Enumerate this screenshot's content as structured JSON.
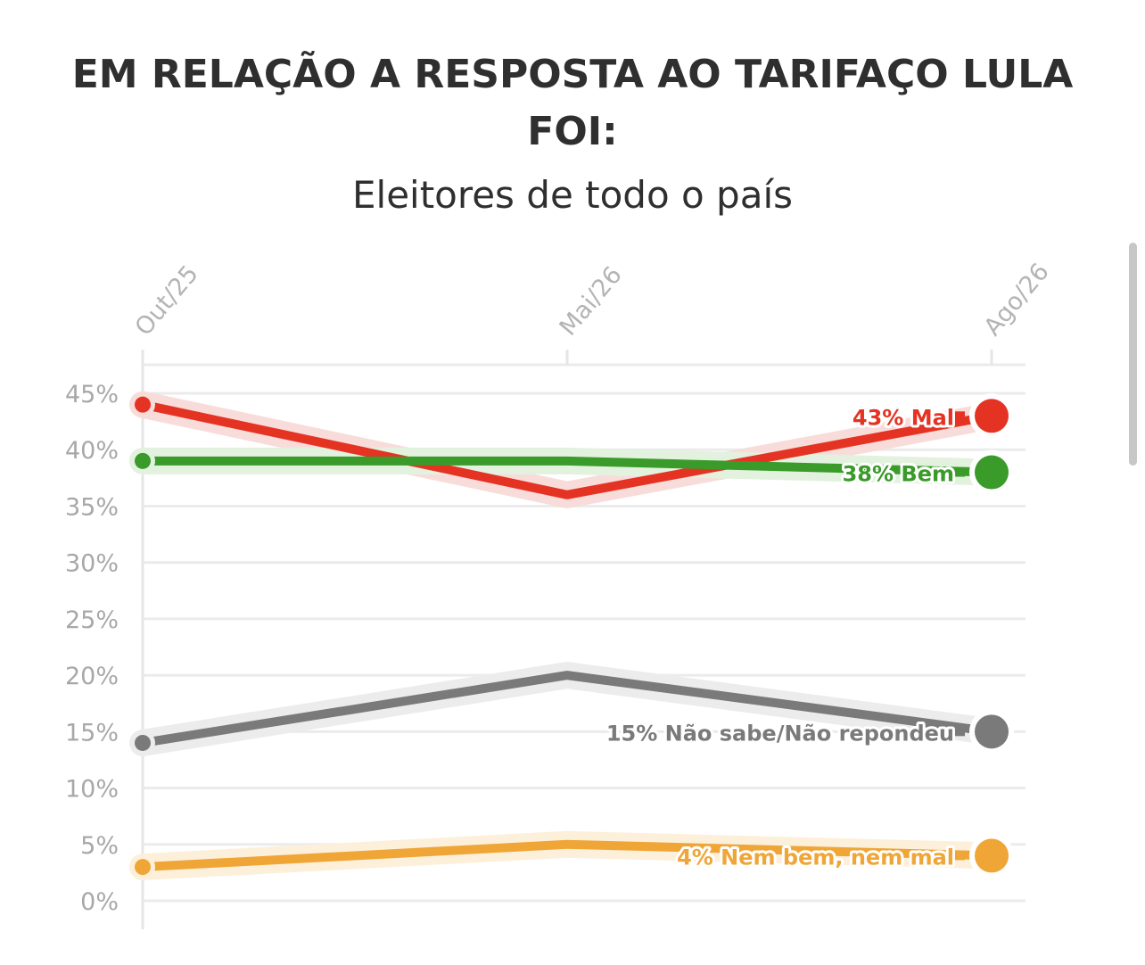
{
  "chart_data": {
    "type": "line",
    "title": "EM RELAÇÃO A RESPOSTA AO TARIFAÇO LULA FOI:",
    "subtitle": "Eleitores de todo o país",
    "x": [
      "Out/25",
      "Mai/26",
      "Ago/26"
    ],
    "y_ticks": [
      "0%",
      "5%",
      "10%",
      "15%",
      "20%",
      "25%",
      "30%",
      "35%",
      "40%",
      "45%"
    ],
    "ylim": [
      0,
      45
    ],
    "grid": true,
    "series": [
      {
        "name": "Mal",
        "label": "43% Mal",
        "values": [
          44,
          36,
          43
        ],
        "color": "#e53323",
        "halo": "#f8dcda"
      },
      {
        "name": "Bem",
        "label": "38% Bem",
        "values": [
          39,
          39,
          38
        ],
        "color": "#3a9a2a",
        "halo": "#e2f2de"
      },
      {
        "name": "Não sabe/Não repondeu",
        "label": "15% Não sabe/Não repondeu",
        "values": [
          14,
          20,
          15
        ],
        "color": "#7a7a7a",
        "halo": "#ececec"
      },
      {
        "name": "Nem bem, nem mal",
        "label": "4% Nem bem, nem mal",
        "values": [
          3,
          5,
          4
        ],
        "color": "#f0a537",
        "halo": "#fdf0da"
      }
    ]
  }
}
